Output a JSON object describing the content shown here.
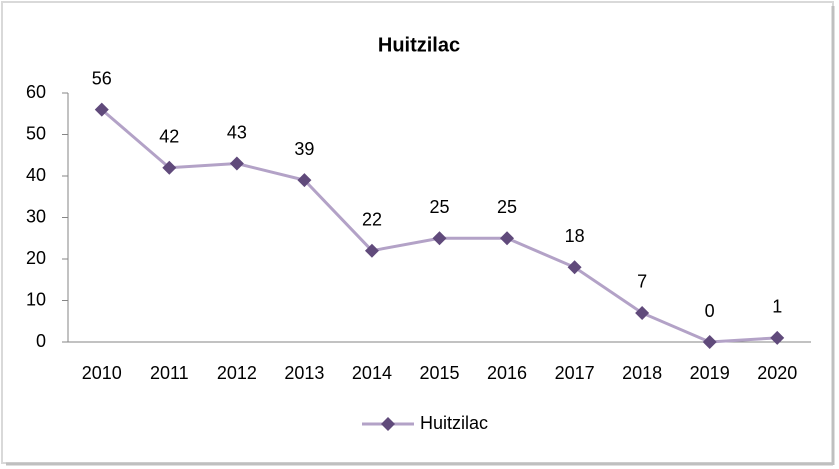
{
  "chart_data": {
    "type": "line",
    "title": "Huitzilac",
    "categories": [
      "2010",
      "2011",
      "2012",
      "2013",
      "2014",
      "2015",
      "2016",
      "2017",
      "2018",
      "2019",
      "2020"
    ],
    "series": [
      {
        "name": "Huitzilac",
        "color": "#b3a2c7",
        "marker_color": "#604a7b",
        "values": [
          56,
          42,
          43,
          39,
          22,
          25,
          25,
          18,
          7,
          0,
          1
        ]
      }
    ],
    "ylim": [
      0,
      60
    ],
    "yticks": [
      0,
      10,
      20,
      30,
      40,
      50,
      60
    ],
    "grid": false,
    "legend": "bottom"
  }
}
